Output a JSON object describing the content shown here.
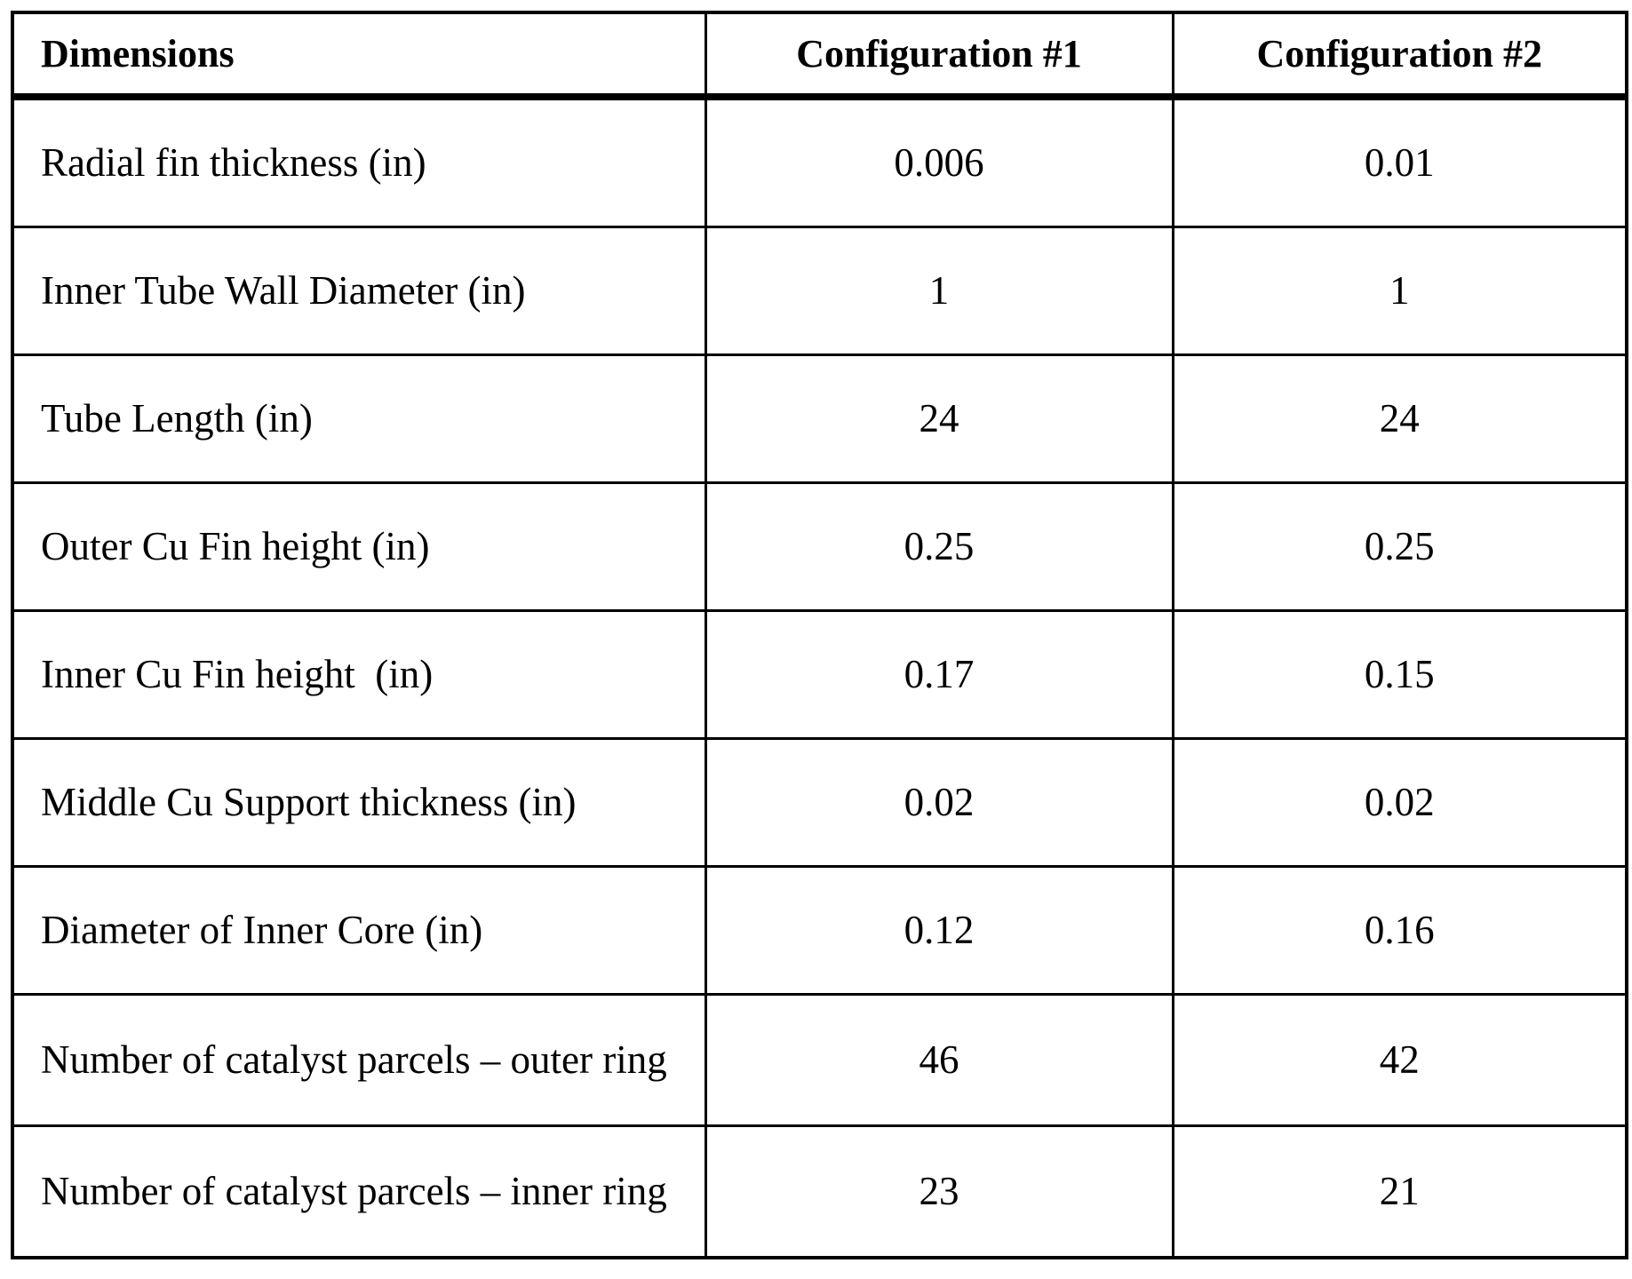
{
  "table": {
    "headers": [
      "Dimensions",
      "Configuration #1",
      "Configuration #2"
    ],
    "rows": [
      {
        "label": "Radial fin thickness (in)",
        "config1": "0.006",
        "config2": "0.01"
      },
      {
        "label": "Inner Tube Wall Diameter (in)",
        "config1": "1",
        "config2": "1"
      },
      {
        "label": "Tube Length (in)",
        "config1": "24",
        "config2": "24"
      },
      {
        "label": "Outer Cu Fin height (in)",
        "config1": "0.25",
        "config2": "0.25"
      },
      {
        "label": "Inner Cu Fin height  (in)",
        "config1": "0.17",
        "config2": "0.15"
      },
      {
        "label": "Middle Cu Support thickness (in)",
        "config1": "0.02",
        "config2": "0.02"
      },
      {
        "label": "Diameter of Inner Core (in)",
        "config1": "0.12",
        "config2": "0.16"
      },
      {
        "label": "Number of catalyst parcels – outer ring",
        "config1": "46",
        "config2": "42"
      },
      {
        "label": "Number of catalyst parcels – inner ring",
        "config1": "23",
        "config2": "21"
      }
    ]
  }
}
